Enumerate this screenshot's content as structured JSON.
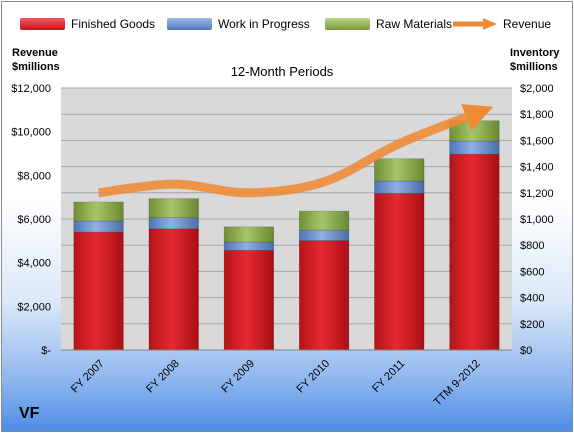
{
  "chart_data": {
    "type": "bar",
    "stacked": true,
    "title": "12-Month Periods",
    "categories": [
      "FY 2007",
      "FY 2008",
      "FY 2009",
      "FY 2010",
      "FY 2011",
      "TTM 9-2012"
    ],
    "series": [
      {
        "name": "Finished Goods",
        "axis": "right",
        "color": "#e0151a",
        "values": [
          900,
          925,
          760,
          835,
          1195,
          1495
        ]
      },
      {
        "name": "Work in Progress",
        "axis": "right",
        "color": "#5b86c9",
        "values": [
          85,
          85,
          65,
          80,
          95,
          100
        ]
      },
      {
        "name": "Raw Materials",
        "axis": "right",
        "color": "#8fb04b",
        "values": [
          145,
          145,
          115,
          145,
          170,
          155
        ]
      }
    ],
    "line_series": {
      "name": "Revenue",
      "axis": "left",
      "color": "#ee8a34",
      "values": [
        7200,
        7600,
        7200,
        7700,
        9450,
        10800
      ]
    },
    "left_axis": {
      "label": "Revenue $millions",
      "ylim": [
        0,
        12000
      ],
      "tick_values": [
        0,
        2000,
        4000,
        6000,
        8000,
        10000,
        12000
      ],
      "tick_labels": [
        "$-",
        "$2,000",
        "$4,000",
        "$6,000",
        "$8,000",
        "$10,000",
        "$12,000"
      ]
    },
    "right_axis": {
      "label": "Inventory $millions",
      "ylim": [
        0,
        2000
      ],
      "tick_values": [
        0,
        200,
        400,
        600,
        800,
        1000,
        1200,
        1400,
        1600,
        1800,
        2000
      ],
      "tick_labels": [
        "$0",
        "$200",
        "$400",
        "$600",
        "$800",
        "$1,000",
        "$1,200",
        "$1,400",
        "$1,600",
        "$1,800",
        "$2,000"
      ]
    },
    "legend": {
      "placement": "top",
      "items": [
        "Finished Goods",
        "Work in Progress",
        "Raw Materials",
        "Revenue"
      ]
    },
    "plot_background": "#d9d9d9"
  },
  "labels": {
    "left_axis_title": [
      "Revenue",
      "$millions"
    ],
    "right_axis_title": [
      "Inventory",
      "$millions"
    ],
    "company": "VF"
  }
}
